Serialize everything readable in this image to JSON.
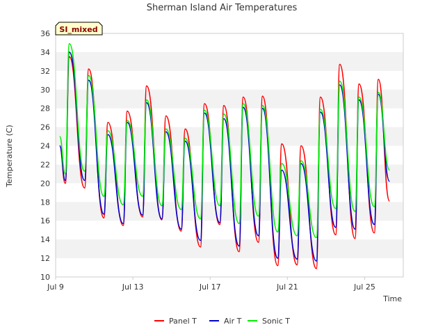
{
  "chart_data": {
    "type": "line",
    "title": "Sherman Island Air Temperatures",
    "xlabel": "Time",
    "ylabel": "Temperature (C)",
    "site_tag": "SI_mixed",
    "xlim": [
      "2023-07-09",
      "2023-07-27"
    ],
    "ylim": [
      10,
      36
    ],
    "yticks": [
      10,
      12,
      14,
      16,
      18,
      20,
      22,
      24,
      26,
      28,
      30,
      32,
      34,
      36
    ],
    "xticks": [
      {
        "date": "2023-07-09",
        "label": "Jul 9"
      },
      {
        "date": "2023-07-13",
        "label": "Jul 13"
      },
      {
        "date": "2023-07-17",
        "label": "Jul 17"
      },
      {
        "date": "2023-07-21",
        "label": "Jul 21"
      },
      {
        "date": "2023-07-25",
        "label": "Jul 25"
      }
    ],
    "grid": "horizontal bands",
    "legend_position": "bottom",
    "series": [
      {
        "name": "Panel T",
        "color": "#ff0000",
        "points": [
          {
            "x": "2023-07-09 05:00",
            "y": 24.0
          },
          {
            "x": "2023-07-09 12:00",
            "y": 20.0
          },
          {
            "x": "2023-07-09 17:00",
            "y": 33.5
          },
          {
            "x": "2023-07-10 12:00",
            "y": 19.5
          },
          {
            "x": "2023-07-10 17:00",
            "y": 32.2
          },
          {
            "x": "2023-07-11 12:00",
            "y": 16.3
          },
          {
            "x": "2023-07-11 17:00",
            "y": 26.5
          },
          {
            "x": "2023-07-12 12:00",
            "y": 15.5
          },
          {
            "x": "2023-07-12 17:00",
            "y": 27.7
          },
          {
            "x": "2023-07-13 12:00",
            "y": 16.4
          },
          {
            "x": "2023-07-13 17:00",
            "y": 30.4
          },
          {
            "x": "2023-07-14 12:00",
            "y": 16.1
          },
          {
            "x": "2023-07-14 17:00",
            "y": 27.2
          },
          {
            "x": "2023-07-15 12:00",
            "y": 14.9
          },
          {
            "x": "2023-07-15 17:00",
            "y": 25.8
          },
          {
            "x": "2023-07-16 12:00",
            "y": 13.2
          },
          {
            "x": "2023-07-16 17:00",
            "y": 28.5
          },
          {
            "x": "2023-07-17 12:00",
            "y": 15.6
          },
          {
            "x": "2023-07-17 17:00",
            "y": 28.3
          },
          {
            "x": "2023-07-18 12:00",
            "y": 12.7
          },
          {
            "x": "2023-07-18 17:00",
            "y": 29.2
          },
          {
            "x": "2023-07-19 12:00",
            "y": 13.7
          },
          {
            "x": "2023-07-19 17:00",
            "y": 29.3
          },
          {
            "x": "2023-07-20 12:00",
            "y": 11.2
          },
          {
            "x": "2023-07-20 17:00",
            "y": 24.2
          },
          {
            "x": "2023-07-21 12:00",
            "y": 11.3
          },
          {
            "x": "2023-07-21 17:00",
            "y": 24.0
          },
          {
            "x": "2023-07-22 12:00",
            "y": 10.9
          },
          {
            "x": "2023-07-22 17:00",
            "y": 29.2
          },
          {
            "x": "2023-07-23 12:00",
            "y": 14.5
          },
          {
            "x": "2023-07-23 17:00",
            "y": 32.7
          },
          {
            "x": "2023-07-24 12:00",
            "y": 14.1
          },
          {
            "x": "2023-07-24 17:00",
            "y": 30.6
          },
          {
            "x": "2023-07-25 12:00",
            "y": 14.7
          },
          {
            "x": "2023-07-25 17:00",
            "y": 31.1
          },
          {
            "x": "2023-07-26 07:00",
            "y": 18.1
          }
        ]
      },
      {
        "name": "Air T",
        "color": "#0000cc",
        "points": [
          {
            "x": "2023-07-09 05:00",
            "y": 24.0
          },
          {
            "x": "2023-07-09 12:00",
            "y": 20.3
          },
          {
            "x": "2023-07-09 17:00",
            "y": 34.0
          },
          {
            "x": "2023-07-10 12:00",
            "y": 20.3
          },
          {
            "x": "2023-07-10 17:00",
            "y": 31.0
          },
          {
            "x": "2023-07-11 12:00",
            "y": 16.7
          },
          {
            "x": "2023-07-11 17:00",
            "y": 25.2
          },
          {
            "x": "2023-07-12 12:00",
            "y": 15.7
          },
          {
            "x": "2023-07-12 17:00",
            "y": 26.5
          },
          {
            "x": "2023-07-13 12:00",
            "y": 16.6
          },
          {
            "x": "2023-07-13 17:00",
            "y": 28.6
          },
          {
            "x": "2023-07-14 12:00",
            "y": 16.2
          },
          {
            "x": "2023-07-14 17:00",
            "y": 25.5
          },
          {
            "x": "2023-07-15 12:00",
            "y": 15.1
          },
          {
            "x": "2023-07-15 17:00",
            "y": 24.5
          },
          {
            "x": "2023-07-16 12:00",
            "y": 13.9
          },
          {
            "x": "2023-07-16 17:00",
            "y": 27.5
          },
          {
            "x": "2023-07-17 12:00",
            "y": 15.8
          },
          {
            "x": "2023-07-17 17:00",
            "y": 26.9
          },
          {
            "x": "2023-07-18 12:00",
            "y": 13.3
          },
          {
            "x": "2023-07-18 17:00",
            "y": 28.1
          },
          {
            "x": "2023-07-19 12:00",
            "y": 14.4
          },
          {
            "x": "2023-07-19 17:00",
            "y": 28.0
          },
          {
            "x": "2023-07-20 12:00",
            "y": 12.0
          },
          {
            "x": "2023-07-20 17:00",
            "y": 21.4
          },
          {
            "x": "2023-07-21 12:00",
            "y": 11.9
          },
          {
            "x": "2023-07-21 17:00",
            "y": 22.1
          },
          {
            "x": "2023-07-22 12:00",
            "y": 11.7
          },
          {
            "x": "2023-07-22 17:00",
            "y": 27.6
          },
          {
            "x": "2023-07-23 12:00",
            "y": 15.3
          },
          {
            "x": "2023-07-23 17:00",
            "y": 30.5
          },
          {
            "x": "2023-07-24 12:00",
            "y": 15.1
          },
          {
            "x": "2023-07-24 17:00",
            "y": 28.9
          },
          {
            "x": "2023-07-25 12:00",
            "y": 15.6
          },
          {
            "x": "2023-07-25 17:00",
            "y": 29.5
          },
          {
            "x": "2023-07-26 07:00",
            "y": 20.2
          }
        ]
      },
      {
        "name": "Sonic T",
        "color": "#00ee00",
        "points": [
          {
            "x": "2023-07-09 05:00",
            "y": 25.0
          },
          {
            "x": "2023-07-09 12:00",
            "y": 21.0
          },
          {
            "x": "2023-07-09 17:00",
            "y": 34.9
          },
          {
            "x": "2023-07-10 12:00",
            "y": 21.3
          },
          {
            "x": "2023-07-10 17:00",
            "y": 31.5
          },
          {
            "x": "2023-07-11 12:00",
            "y": 18.6
          },
          {
            "x": "2023-07-11 17:00",
            "y": 25.6
          },
          {
            "x": "2023-07-12 12:00",
            "y": 17.7
          },
          {
            "x": "2023-07-12 17:00",
            "y": 26.7
          },
          {
            "x": "2023-07-13 12:00",
            "y": 18.6
          },
          {
            "x": "2023-07-13 17:00",
            "y": 28.9
          },
          {
            "x": "2023-07-14 12:00",
            "y": 17.6
          },
          {
            "x": "2023-07-14 17:00",
            "y": 25.8
          },
          {
            "x": "2023-07-15 12:00",
            "y": 17.2
          },
          {
            "x": "2023-07-15 17:00",
            "y": 24.8
          },
          {
            "x": "2023-07-16 12:00",
            "y": 16.2
          },
          {
            "x": "2023-07-16 17:00",
            "y": 27.8
          },
          {
            "x": "2023-07-17 12:00",
            "y": 17.6
          },
          {
            "x": "2023-07-17 17:00",
            "y": 27.4
          },
          {
            "x": "2023-07-18 12:00",
            "y": 15.7
          },
          {
            "x": "2023-07-18 17:00",
            "y": 28.5
          },
          {
            "x": "2023-07-19 12:00",
            "y": 16.5
          },
          {
            "x": "2023-07-19 17:00",
            "y": 28.3
          },
          {
            "x": "2023-07-20 12:00",
            "y": 14.8
          },
          {
            "x": "2023-07-20 17:00",
            "y": 22.1
          },
          {
            "x": "2023-07-21 12:00",
            "y": 14.4
          },
          {
            "x": "2023-07-21 17:00",
            "y": 22.4
          },
          {
            "x": "2023-07-22 12:00",
            "y": 14.2
          },
          {
            "x": "2023-07-22 17:00",
            "y": 27.9
          },
          {
            "x": "2023-07-23 12:00",
            "y": 17.3
          },
          {
            "x": "2023-07-23 17:00",
            "y": 30.9
          },
          {
            "x": "2023-07-24 12:00",
            "y": 17.0
          },
          {
            "x": "2023-07-24 17:00",
            "y": 29.2
          },
          {
            "x": "2023-07-25 12:00",
            "y": 17.5
          },
          {
            "x": "2023-07-25 17:00",
            "y": 29.7
          },
          {
            "x": "2023-07-26 07:00",
            "y": 21.4
          }
        ]
      }
    ]
  }
}
